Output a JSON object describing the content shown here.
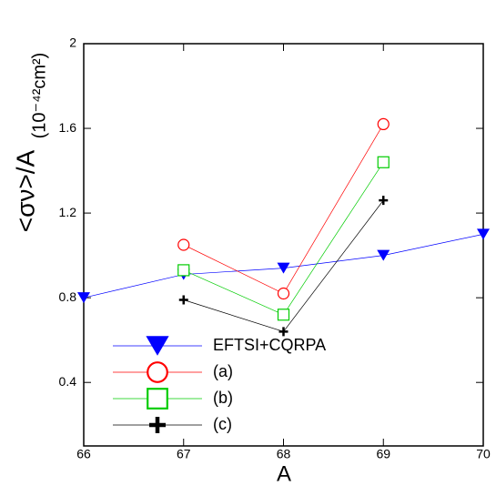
{
  "chart_data": {
    "type": "line",
    "x_label": "A",
    "y_label": "<σν>/A",
    "y_unit": "(10⁻⁴²cm²)",
    "x": [
      66,
      67,
      68,
      69,
      70
    ],
    "series": [
      {
        "name": "EFTSI+CQRPA",
        "color": "#0000ff",
        "marker": "triangle-down",
        "values": [
          0.8,
          0.91,
          0.94,
          1.0,
          1.1
        ]
      },
      {
        "name": "(a)",
        "color": "#ff0000",
        "marker": "circle",
        "values": [
          null,
          1.05,
          0.82,
          1.62,
          null
        ]
      },
      {
        "name": "(b)",
        "color": "#00cc00",
        "marker": "square",
        "values": [
          null,
          0.93,
          0.72,
          1.44,
          null
        ]
      },
      {
        "name": "(c)",
        "color": "#000000",
        "marker": "plus",
        "values": [
          null,
          0.79,
          0.64,
          1.26,
          null
        ]
      }
    ],
    "xlim": [
      66,
      70
    ],
    "xticks": [
      66,
      67,
      68,
      69,
      70
    ],
    "ylim": [
      0.1,
      2
    ],
    "yticks": [
      {
        "value": 0.4,
        "label": "0.4"
      },
      {
        "value": 0.8,
        "label": "0.8"
      },
      {
        "value": 1.2,
        "label": "1.2"
      },
      {
        "value": 1.6,
        "label": "1.6"
      },
      2
    ],
    "legend": "lower-left"
  }
}
